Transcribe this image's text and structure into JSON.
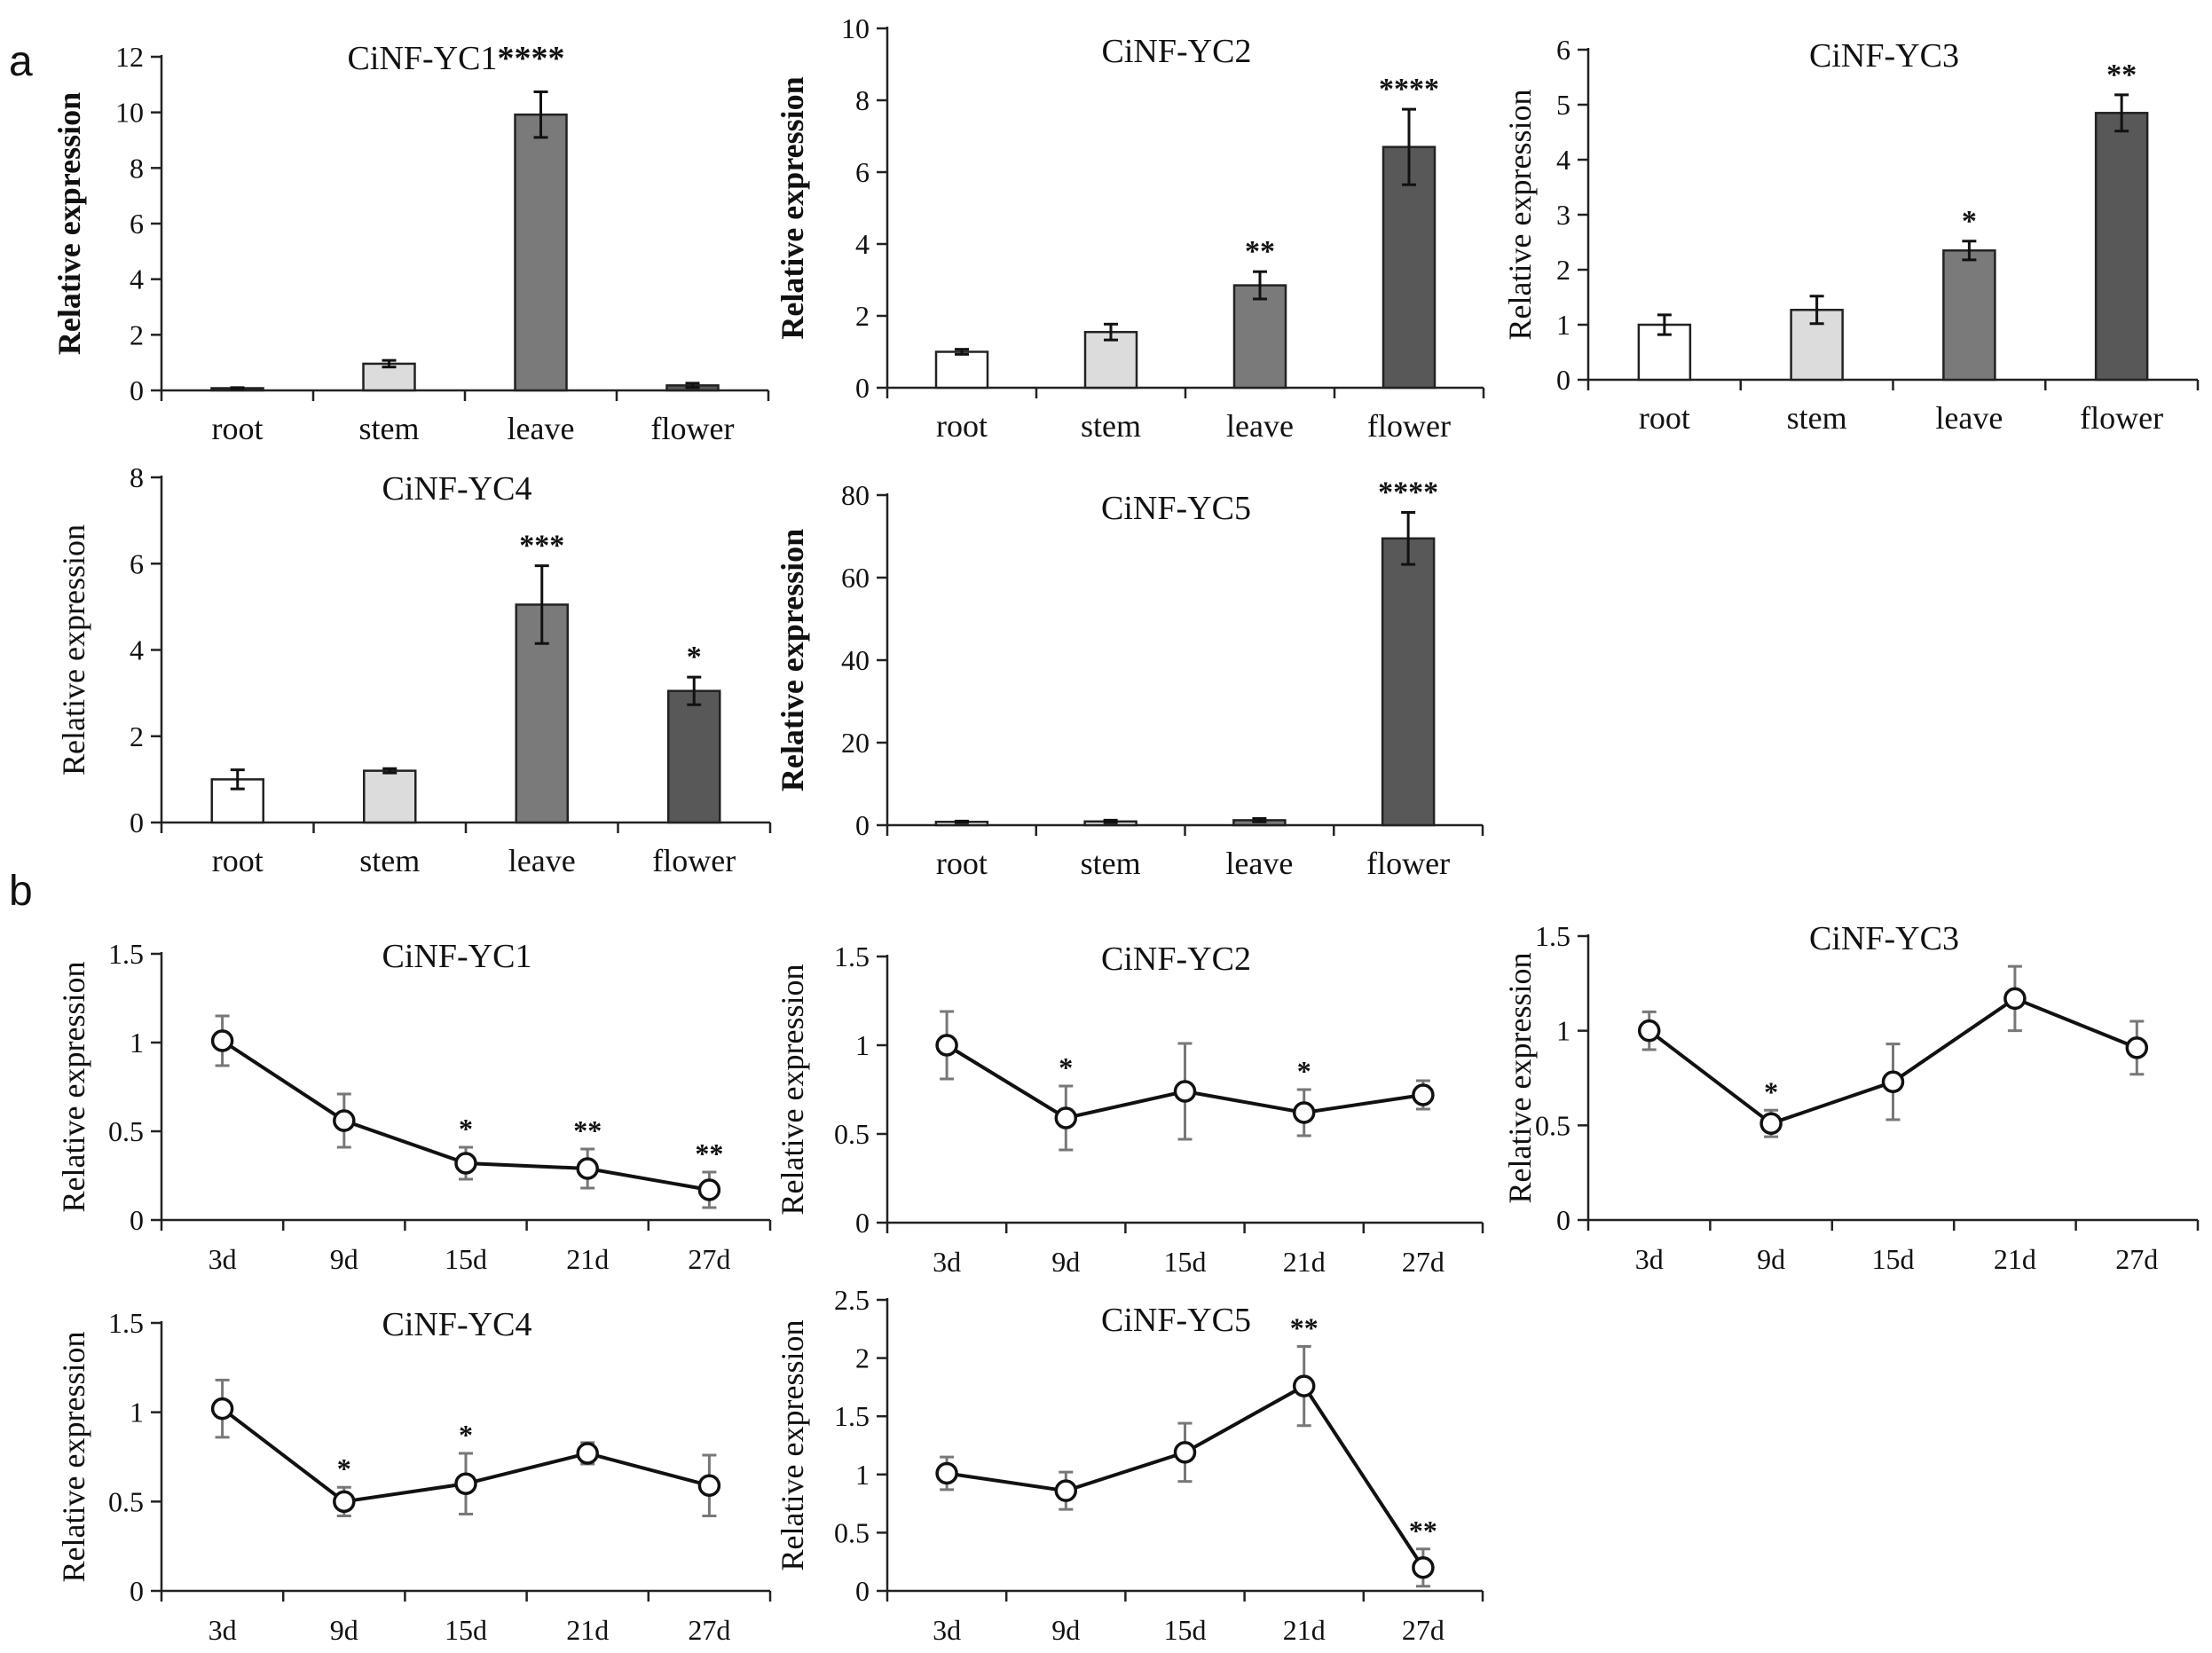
{
  "figure": {
    "panel_letters": [
      "a",
      "b"
    ]
  },
  "chart_data": [
    {
      "panel": "a",
      "type": "bar",
      "title": "CiNF-YC1",
      "title_star": "****",
      "ylabel": "Relative expression",
      "ylabel_bold": true,
      "categories": [
        "root",
        "stem",
        "leave",
        "flower"
      ],
      "values": [
        0.08,
        0.96,
        9.92,
        0.18
      ],
      "errors": [
        0.02,
        0.12,
        0.82,
        0.08
      ],
      "significance": [
        "",
        "",
        "",
        ""
      ],
      "ylim": [
        0,
        12
      ],
      "yticks": [
        0,
        2,
        4,
        6,
        8,
        10,
        12
      ],
      "bar_colors": [
        "#ffffff",
        "#dcdcdc",
        "#7a7a7a",
        "#585858"
      ]
    },
    {
      "panel": "a",
      "type": "bar",
      "title": "CiNF-YC2",
      "title_star": "",
      "ylabel": "Relative expression",
      "ylabel_bold": true,
      "categories": [
        "root",
        "stem",
        "leave",
        "flower"
      ],
      "values": [
        1.0,
        1.55,
        2.85,
        6.7
      ],
      "errors": [
        0.07,
        0.22,
        0.38,
        1.05
      ],
      "significance": [
        "",
        "",
        "**",
        "****"
      ],
      "ylim": [
        0,
        10
      ],
      "yticks": [
        0,
        2,
        4,
        6,
        8,
        10
      ],
      "bar_colors": [
        "#ffffff",
        "#dcdcdc",
        "#7a7a7a",
        "#585858"
      ]
    },
    {
      "panel": "a",
      "type": "bar",
      "title": "CiNF-YC3",
      "title_star": "",
      "ylabel": "Relative expression",
      "ylabel_bold": false,
      "categories": [
        "root",
        "stem",
        "leave",
        "flower"
      ],
      "values": [
        1.0,
        1.27,
        2.35,
        4.85
      ],
      "errors": [
        0.18,
        0.25,
        0.17,
        0.33
      ],
      "significance": [
        "",
        "",
        "*",
        "**"
      ],
      "ylim": [
        0,
        6
      ],
      "yticks": [
        0,
        1,
        2,
        3,
        4,
        5,
        6
      ],
      "bar_colors": [
        "#ffffff",
        "#dcdcdc",
        "#7a7a7a",
        "#585858"
      ]
    },
    {
      "panel": "a",
      "type": "bar",
      "title": "CiNF-YC4",
      "title_star": "",
      "ylabel": "Relative expression",
      "ylabel_bold": false,
      "categories": [
        "root",
        "stem",
        "leave",
        "flower"
      ],
      "values": [
        1.0,
        1.2,
        5.05,
        3.05
      ],
      "errors": [
        0.22,
        0.05,
        0.9,
        0.32
      ],
      "significance": [
        "",
        "",
        "***",
        "*"
      ],
      "ylim": [
        0,
        8
      ],
      "yticks": [
        0,
        2,
        4,
        6,
        8
      ],
      "bar_colors": [
        "#ffffff",
        "#dcdcdc",
        "#7a7a7a",
        "#585858"
      ]
    },
    {
      "panel": "a",
      "type": "bar",
      "title": "CiNF-YC5",
      "title_star": "",
      "ylabel": "Relative expression",
      "ylabel_bold": true,
      "categories": [
        "root",
        "stem",
        "leave",
        "flower"
      ],
      "values": [
        0.8,
        0.9,
        1.2,
        69.5
      ],
      "errors": [
        0.2,
        0.3,
        0.4,
        6.3
      ],
      "significance": [
        "",
        "",
        "",
        "****"
      ],
      "ylim": [
        0,
        80
      ],
      "yticks": [
        0,
        20,
        40,
        60,
        80
      ],
      "bar_colors": [
        "#ffffff",
        "#dcdcdc",
        "#7a7a7a",
        "#585858"
      ]
    },
    {
      "panel": "b",
      "type": "line",
      "title": "CiNF-YC1",
      "ylabel": "Relative expression",
      "categories": [
        "3d",
        "9d",
        "15d",
        "21d",
        "27d"
      ],
      "values": [
        1.01,
        0.56,
        0.32,
        0.29,
        0.17
      ],
      "errors": [
        0.14,
        0.15,
        0.09,
        0.11,
        0.1
      ],
      "significance": [
        "",
        "",
        "*",
        "**",
        "**"
      ],
      "ylim": [
        0,
        1.5
      ],
      "yticks": [
        0,
        0.5,
        1,
        1.5
      ],
      "yticklabels": [
        "0",
        "0.5",
        "1",
        "1.5"
      ]
    },
    {
      "panel": "b",
      "type": "line",
      "title": "CiNF-YC2",
      "ylabel": "Relative expression",
      "categories": [
        "3d",
        "9d",
        "15d",
        "21d",
        "27d"
      ],
      "values": [
        1.0,
        0.59,
        0.74,
        0.62,
        0.72
      ],
      "errors": [
        0.19,
        0.18,
        0.27,
        0.13,
        0.08
      ],
      "significance": [
        "",
        "*",
        "",
        "*",
        ""
      ],
      "ylim": [
        0,
        1.5
      ],
      "yticks": [
        0,
        0.5,
        1,
        1.5
      ],
      "yticklabels": [
        "0",
        "0.5",
        "1",
        "1.5"
      ]
    },
    {
      "panel": "b",
      "type": "line",
      "title": "CiNF-YC3",
      "ylabel": "Relative expression",
      "categories": [
        "3d",
        "9d",
        "15d",
        "21d",
        "27d"
      ],
      "values": [
        1.0,
        0.51,
        0.73,
        1.17,
        0.91
      ],
      "errors": [
        0.1,
        0.07,
        0.2,
        0.17,
        0.14
      ],
      "significance": [
        "",
        "*",
        "",
        "",
        ""
      ],
      "ylim": [
        0,
        1.5
      ],
      "yticks": [
        0,
        0.5,
        1,
        1.5
      ],
      "yticklabels": [
        "0",
        "0.5",
        "1",
        "1.5"
      ]
    },
    {
      "panel": "b",
      "type": "line",
      "title": "CiNF-YC4",
      "ylabel": "Relative expression",
      "categories": [
        "3d",
        "9d",
        "15d",
        "21d",
        "27d"
      ],
      "values": [
        1.02,
        0.5,
        0.6,
        0.77,
        0.59
      ],
      "errors": [
        0.16,
        0.08,
        0.17,
        0.06,
        0.17
      ],
      "significance": [
        "",
        "*",
        "*",
        "",
        ""
      ],
      "ylim": [
        0,
        1.5
      ],
      "yticks": [
        0,
        0.5,
        1,
        1.5
      ],
      "yticklabels": [
        "0",
        "0.5",
        "1",
        "1.5"
      ]
    },
    {
      "panel": "b",
      "type": "line",
      "title": "CiNF-YC5",
      "ylabel": "Relative expression",
      "categories": [
        "3d",
        "9d",
        "15d",
        "21d",
        "27d"
      ],
      "values": [
        1.01,
        0.86,
        1.19,
        1.76,
        0.2
      ],
      "errors": [
        0.14,
        0.16,
        0.25,
        0.34,
        0.16
      ],
      "significance": [
        "",
        "",
        "",
        "**",
        "**"
      ],
      "ylim": [
        0,
        2.5
      ],
      "yticks": [
        0,
        0.5,
        1,
        1.5,
        2,
        2.5
      ],
      "yticklabels": [
        "0",
        "0.5",
        "1",
        "1.5",
        "2",
        "2.5"
      ]
    }
  ]
}
